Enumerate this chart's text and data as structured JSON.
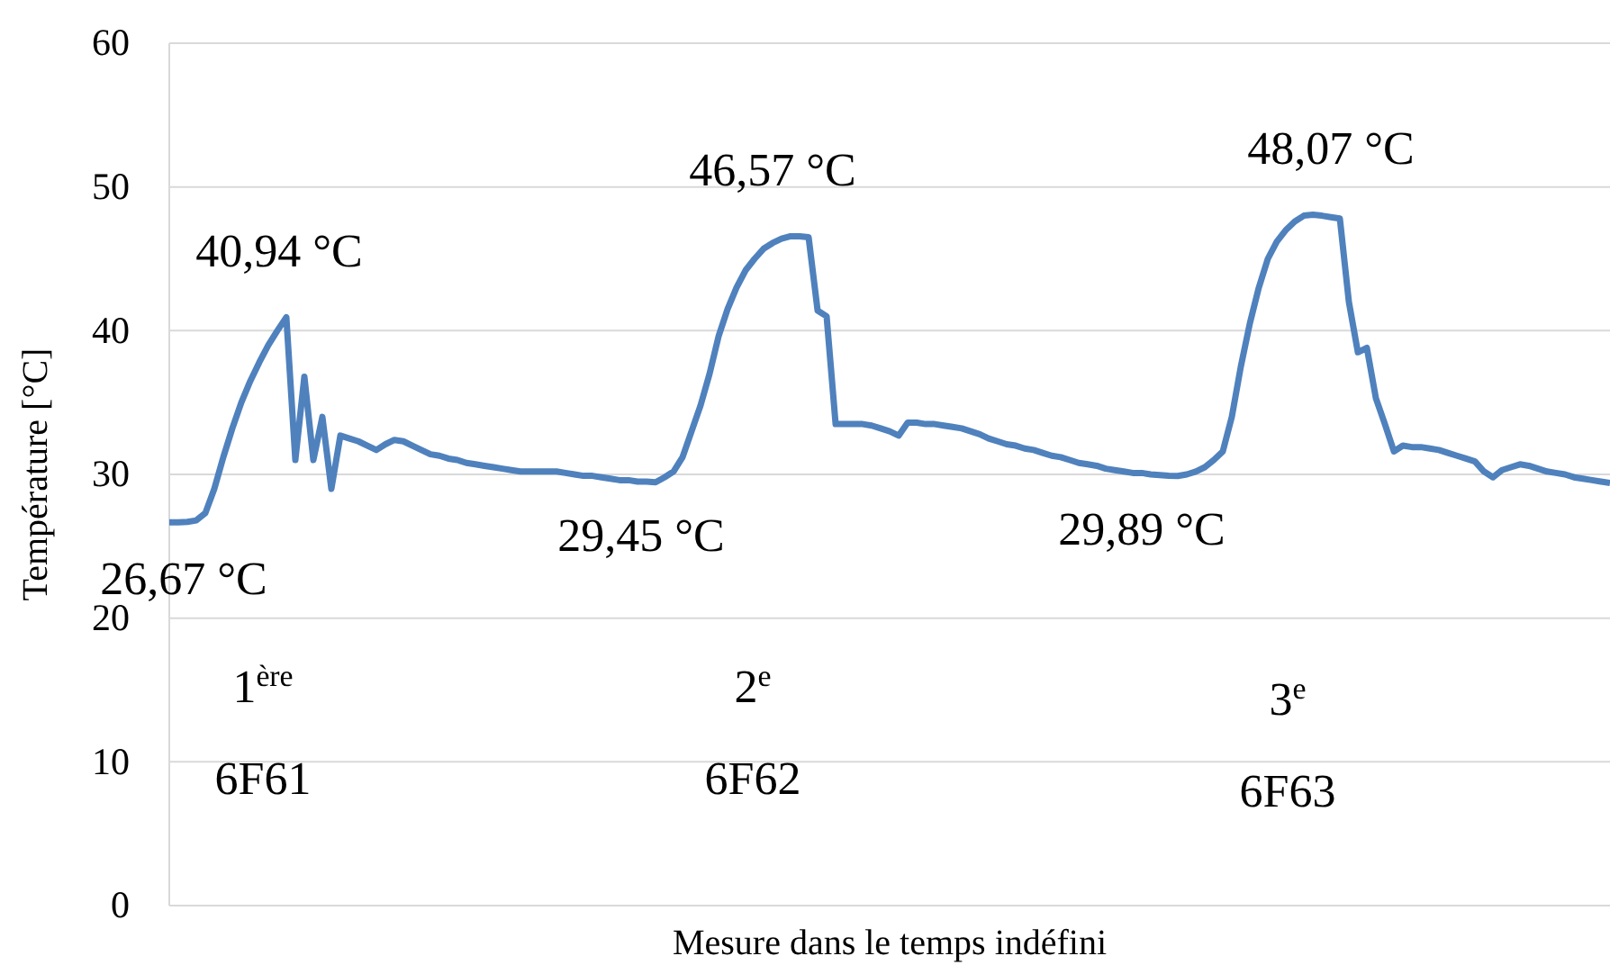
{
  "chart_data": {
    "type": "line",
    "xlabel": "Mesure dans le temps indéfini",
    "ylabel": "Température [°C]",
    "ylim": [
      0,
      60
    ],
    "yticks": [
      0,
      10,
      20,
      30,
      40,
      50,
      60
    ],
    "grid": "y",
    "marker": "none",
    "line_style": "solid",
    "categories": [
      null,
      null,
      null,
      null,
      null,
      null,
      null,
      null,
      null,
      null,
      null,
      null,
      null,
      null,
      null,
      null,
      null,
      null,
      null,
      null,
      null,
      null,
      null,
      null,
      null,
      null,
      null,
      null,
      null,
      null,
      null,
      null,
      null,
      null,
      null,
      null,
      null,
      null,
      null,
      null,
      null,
      null,
      null,
      null,
      null,
      null,
      null,
      null,
      null,
      null,
      null,
      null,
      null,
      null,
      null,
      null,
      null,
      null,
      null,
      null,
      null,
      null,
      null,
      null,
      null,
      null,
      null,
      null,
      null,
      null,
      null,
      null,
      null,
      null,
      null,
      null,
      null,
      null,
      null,
      null,
      null,
      null,
      null,
      null,
      null,
      null,
      null,
      null,
      null,
      null,
      null,
      null,
      null,
      null,
      null,
      null,
      null,
      null,
      null,
      null,
      null,
      null,
      null,
      null,
      null,
      null,
      null,
      null,
      null,
      null,
      null,
      null,
      null,
      null,
      null,
      null,
      null,
      null,
      null,
      null,
      null,
      null,
      null,
      null,
      null,
      null,
      null,
      null,
      null,
      null,
      null,
      null,
      null,
      null,
      null,
      null,
      null,
      null,
      null,
      null,
      null,
      null,
      null,
      null,
      null,
      null,
      null,
      null,
      null,
      null,
      null,
      null,
      null,
      null,
      null,
      null,
      null,
      null,
      null,
      null,
      null
    ],
    "series": [
      {
        "color": "#4f81bd",
        "values": [
          26.67,
          26.67,
          26.7,
          26.8,
          27.3,
          29,
          31.2,
          33.2,
          35,
          36.5,
          37.8,
          39,
          40,
          40.94,
          31,
          36.8,
          31,
          34,
          29,
          32.7,
          32.5,
          32.3,
          32,
          31.7,
          32.1,
          32.4,
          32.3,
          32,
          31.7,
          31.4,
          31.3,
          31.1,
          31,
          30.8,
          30.7,
          30.6,
          30.5,
          30.4,
          30.3,
          30.2,
          30.2,
          30.2,
          30.2,
          30.2,
          30.1,
          30,
          29.9,
          29.9,
          29.8,
          29.7,
          29.6,
          29.6,
          29.5,
          29.5,
          29.45,
          29.8,
          30.2,
          31.2,
          33,
          34.8,
          37,
          39.6,
          41.5,
          43,
          44.2,
          45,
          45.7,
          46.1,
          46.4,
          46.57,
          46.57,
          46.5,
          41.4,
          41,
          33.5,
          33.5,
          33.5,
          33.5,
          33.4,
          33.2,
          33,
          32.7,
          33.6,
          33.6,
          33.5,
          33.5,
          33.4,
          33.3,
          33.2,
          33,
          32.8,
          32.5,
          32.3,
          32.1,
          32,
          31.8,
          31.7,
          31.5,
          31.3,
          31.2,
          31,
          30.8,
          30.7,
          30.6,
          30.4,
          30.3,
          30.2,
          30.1,
          30.1,
          30,
          29.95,
          29.9,
          29.89,
          30,
          30.2,
          30.5,
          31,
          31.6,
          34,
          37.5,
          40.5,
          43,
          45,
          46.2,
          47,
          47.6,
          48,
          48.07,
          48,
          47.9,
          47.8,
          42,
          38.5,
          38.8,
          35.3,
          33.5,
          31.6,
          32,
          31.9,
          31.9,
          31.8,
          31.7,
          31.5,
          31.3,
          31.1,
          30.9,
          30.2,
          29.8,
          30.3,
          30.5,
          30.7,
          30.6,
          30.4,
          30.2,
          30.1,
          30,
          29.8,
          29.7,
          29.6,
          29.5,
          29.4
        ]
      }
    ],
    "annotations": [
      {
        "text": "40,94 °C",
        "y": 40.94
      },
      {
        "text": "26,67 °C",
        "y": 26.67
      },
      {
        "text": "46,57 °C",
        "y": 46.57
      },
      {
        "text": "29,45 °C",
        "y": 29.45
      },
      {
        "text": "48,07 °C",
        "y": 48.07
      },
      {
        "text": "29,89 °C",
        "y": 29.89
      },
      "1$^{ère}$",
      "6F61",
      "2$^{e}$",
      "6F62",
      "3$^{e}$",
      "6F63"
    ]
  }
}
